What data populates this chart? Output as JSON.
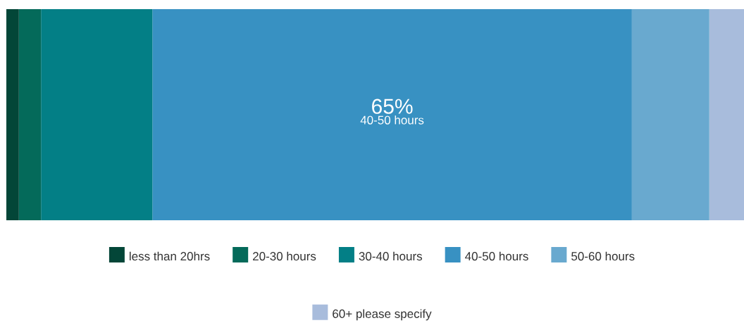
{
  "chart_data": {
    "type": "bar",
    "orientation": "horizontal",
    "stacked": true,
    "categories": [
      null
    ],
    "xlim": [
      0,
      100
    ],
    "legend": "bottom",
    "series": [
      {
        "name": "less than 20hrs",
        "color": "#034638",
        "values": [
          1.7
        ]
      },
      {
        "name": "20-30 hours",
        "color": "#046a5a",
        "values": [
          3.0
        ]
      },
      {
        "name": "30-40 hours",
        "color": "#037f86",
        "values": [
          15.1
        ]
      },
      {
        "name": "40-50 hours",
        "color": "#3891c2",
        "values": [
          65
        ],
        "value_labels": [
          "65%"
        ]
      },
      {
        "name": "50-60 hours",
        "color": "#69a9cf",
        "values": [
          10.5
        ]
      },
      {
        "name": "60+ please specify",
        "color": "#a8bcdc",
        "values": [
          4.7
        ]
      }
    ],
    "annotations": [
      "40-50 hours"
    ]
  }
}
